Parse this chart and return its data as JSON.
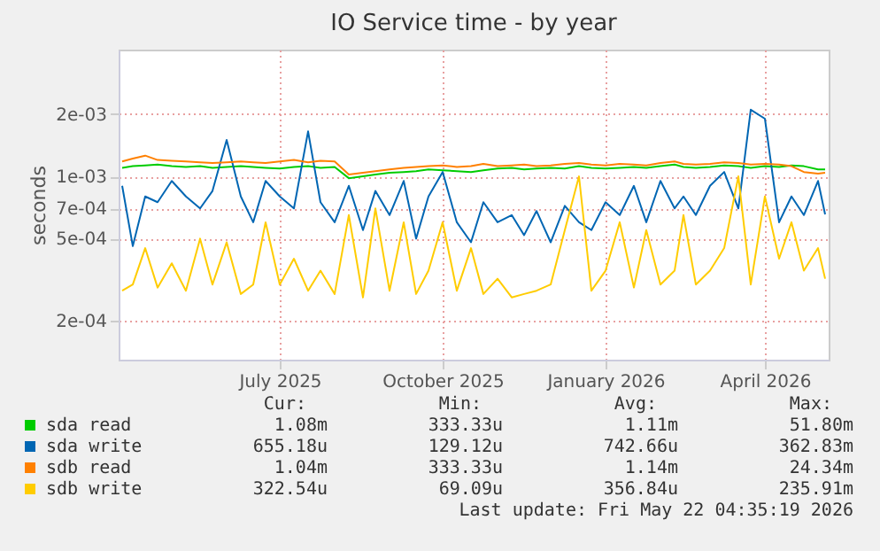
{
  "chart_data": {
    "type": "line",
    "title": "IO Service time - by year",
    "ylabel": "seconds",
    "log": true,
    "grid": true,
    "legend": "bottom",
    "marker": "none",
    "line_style": "solid",
    "xlim": [
      "2025-04-16",
      "2026-05-22"
    ],
    "xticks": [
      {
        "value": "2025-07-16",
        "label": "July 2025"
      },
      {
        "value": "2025-10-16",
        "label": "October 2025"
      },
      {
        "value": "2026-01-16",
        "label": "January 2026"
      },
      {
        "value": "2026-04-16",
        "label": "April 2026"
      }
    ],
    "ylim": [
      0.00013,
      0.0041
    ],
    "yticks": [
      {
        "value": 0.0002,
        "label": "2e-04"
      },
      {
        "value": 0.0005,
        "label": "5e-04"
      },
      {
        "value": 0.0007,
        "label": "7e-04"
      },
      {
        "value": 0.001,
        "label": "1e-03"
      },
      {
        "value": 0.002,
        "label": "2e-03"
      }
    ],
    "x": [
      "2025-04-18",
      "2025-04-24",
      "2025-05-01",
      "2025-05-08",
      "2025-05-16",
      "2025-05-24",
      "2025-06-01",
      "2025-06-08",
      "2025-06-16",
      "2025-06-24",
      "2025-07-01",
      "2025-07-08",
      "2025-07-16",
      "2025-07-24",
      "2025-08-01",
      "2025-08-08",
      "2025-08-16",
      "2025-08-24",
      "2025-09-01",
      "2025-09-08",
      "2025-09-16",
      "2025-09-24",
      "2025-10-01",
      "2025-10-08",
      "2025-10-16",
      "2025-10-24",
      "2025-11-01",
      "2025-11-08",
      "2025-11-16",
      "2025-11-24",
      "2025-12-01",
      "2025-12-08",
      "2025-12-16",
      "2025-12-24",
      "2026-01-01",
      "2026-01-08",
      "2026-01-16",
      "2026-01-24",
      "2026-02-01",
      "2026-02-08",
      "2026-02-16",
      "2026-02-24",
      "2026-03-01",
      "2026-03-08",
      "2026-03-16",
      "2026-03-24",
      "2026-04-01",
      "2026-04-08",
      "2026-04-16",
      "2026-04-24",
      "2026-05-01",
      "2026-05-08",
      "2026-05-16",
      "2026-05-20"
    ],
    "series": [
      {
        "name": "sda read",
        "color": "#00cc00",
        "values": [
          0.0011,
          0.00112,
          0.00113,
          0.00114,
          0.00112,
          0.00111,
          0.00112,
          0.0011,
          0.00111,
          0.00112,
          0.00111,
          0.0011,
          0.00109,
          0.00111,
          0.00112,
          0.0011,
          0.00111,
          0.00098,
          0.001,
          0.00102,
          0.00104,
          0.00105,
          0.00106,
          0.00108,
          0.00107,
          0.00106,
          0.00105,
          0.00107,
          0.00109,
          0.0011,
          0.00108,
          0.00109,
          0.0011,
          0.00109,
          0.00112,
          0.0011,
          0.00109,
          0.0011,
          0.00111,
          0.0011,
          0.00112,
          0.00114,
          0.00111,
          0.0011,
          0.00111,
          0.00113,
          0.00112,
          0.0011,
          0.00112,
          0.00111,
          0.00113,
          0.00112,
          0.00108,
          0.00108
        ]
      },
      {
        "name": "sda write",
        "color": "#0066b3",
        "values": [
          0.0009,
          0.00046,
          0.0008,
          0.00075,
          0.00095,
          0.0008,
          0.0007,
          0.00085,
          0.0015,
          0.0008,
          0.0006,
          0.00095,
          0.0008,
          0.0007,
          0.00165,
          0.00075,
          0.0006,
          0.0009,
          0.00055,
          0.00085,
          0.00065,
          0.00095,
          0.0005,
          0.0008,
          0.00105,
          0.0006,
          0.00048,
          0.00075,
          0.0006,
          0.00065,
          0.00052,
          0.00068,
          0.00048,
          0.00072,
          0.0006,
          0.00055,
          0.00075,
          0.00065,
          0.0009,
          0.0006,
          0.00095,
          0.0007,
          0.0008,
          0.00065,
          0.0009,
          0.00105,
          0.0007,
          0.0021,
          0.0019,
          0.0006,
          0.0008,
          0.00065,
          0.00095,
          0.000655
        ]
      },
      {
        "name": "sdb read",
        "color": "#ff8000",
        "values": [
          0.00118,
          0.00122,
          0.00126,
          0.0012,
          0.00119,
          0.00118,
          0.00117,
          0.00116,
          0.00117,
          0.00118,
          0.00117,
          0.00116,
          0.00118,
          0.0012,
          0.00117,
          0.00119,
          0.00118,
          0.00102,
          0.00104,
          0.00106,
          0.00108,
          0.0011,
          0.00111,
          0.00112,
          0.00113,
          0.00111,
          0.00112,
          0.00115,
          0.00112,
          0.00113,
          0.00114,
          0.00112,
          0.00113,
          0.00115,
          0.00116,
          0.00114,
          0.00113,
          0.00115,
          0.00114,
          0.00113,
          0.00116,
          0.00118,
          0.00115,
          0.00114,
          0.00115,
          0.00117,
          0.00116,
          0.00114,
          0.00115,
          0.00114,
          0.00112,
          0.00105,
          0.00103,
          0.00104
        ]
      },
      {
        "name": "sdb write",
        "color": "#ffcc00",
        "values": [
          0.00028,
          0.0003,
          0.00045,
          0.00029,
          0.00038,
          0.00028,
          0.0005,
          0.0003,
          0.00048,
          0.00027,
          0.0003,
          0.0006,
          0.0003,
          0.0004,
          0.00028,
          0.00035,
          0.00027,
          0.00065,
          0.00026,
          0.0007,
          0.00028,
          0.0006,
          0.00027,
          0.00035,
          0.0006,
          0.00028,
          0.00045,
          0.00027,
          0.00032,
          0.00026,
          0.00027,
          0.00028,
          0.0003,
          0.00055,
          0.001,
          0.00028,
          0.00035,
          0.0006,
          0.00029,
          0.00055,
          0.0003,
          0.00035,
          0.00065,
          0.0003,
          0.00035,
          0.00045,
          0.001,
          0.0003,
          0.0008,
          0.0004,
          0.0006,
          0.00035,
          0.00045,
          0.00032
        ]
      }
    ],
    "annotations": [
      "Cur:",
      "Min:",
      "Avg:",
      "Max:",
      "1.08m",
      "333.33u",
      "1.11m",
      "51.80m",
      "655.18u",
      "129.12u",
      "742.66u",
      "362.83m",
      "1.04m",
      "333.33u",
      "1.14m",
      "24.34m",
      "322.54u",
      "69.09u",
      "356.84u",
      "235.91m",
      "Last update: Fri May 22 04:35:19 2026"
    ]
  }
}
